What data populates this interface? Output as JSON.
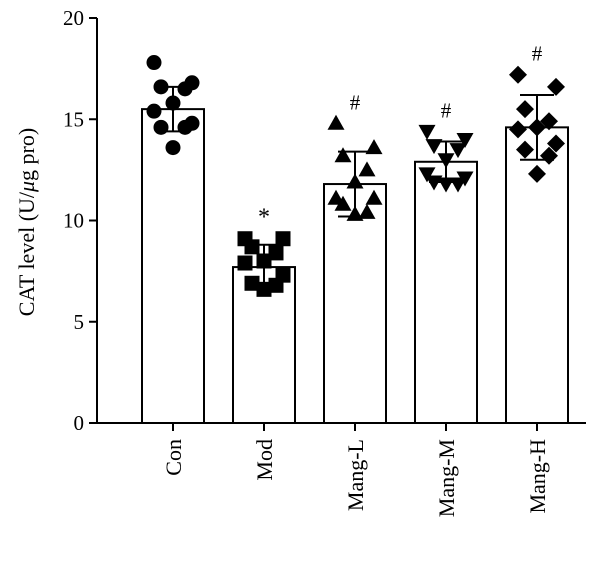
{
  "chart_data": {
    "type": "bar",
    "ylabel_prefix": "CAT level (U/",
    "ylabel_mu": "μ",
    "ylabel_suffix": "g pro)",
    "ylim": [
      0,
      20
    ],
    "yticks": [
      "0",
      "5",
      "10",
      "15",
      "20"
    ],
    "grid": false,
    "categories": [
      "Con",
      "Mod",
      "Mang-L",
      "Mang-M",
      "Mang-H"
    ],
    "values": [
      15.5,
      7.7,
      11.8,
      12.9,
      14.6
    ],
    "errors": [
      1.1,
      1.1,
      1.6,
      1.0,
      1.6
    ],
    "markers": [
      "circle",
      "square",
      "triangle-up",
      "triangle-down",
      "diamond"
    ],
    "significance": [
      "",
      "*",
      "#",
      "#",
      "#"
    ],
    "points": [
      [
        17.8,
        16.8,
        16.6,
        16.5,
        15.8,
        15.4,
        14.8,
        14.6,
        14.6,
        13.6
      ],
      [
        9.1,
        9.1,
        8.7,
        8.4,
        8.0,
        7.9,
        7.3,
        6.9,
        6.8,
        6.6
      ],
      [
        14.8,
        13.6,
        13.2,
        12.5,
        11.9,
        11.1,
        11.1,
        10.8,
        10.4,
        10.3
      ],
      [
        14.4,
        14.0,
        13.7,
        13.5,
        13.0,
        12.3,
        12.1,
        11.9,
        11.8,
        11.8
      ],
      [
        17.2,
        16.6,
        15.5,
        14.9,
        14.6,
        14.5,
        13.8,
        13.5,
        13.2,
        12.3
      ]
    ],
    "colors": {
      "bar_fill": "#ffffff",
      "bar_stroke": "#000000",
      "marker": "#000000"
    }
  }
}
